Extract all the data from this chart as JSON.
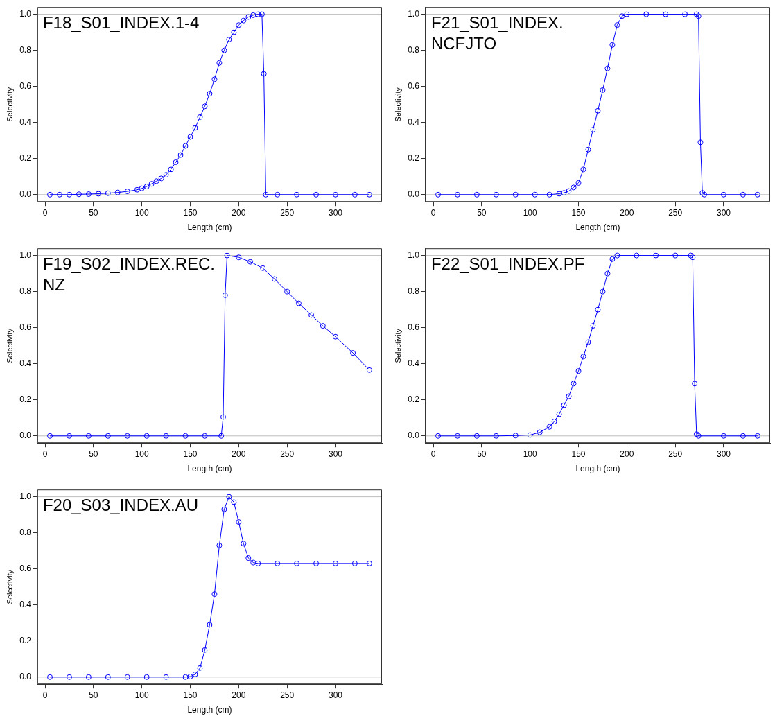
{
  "chart_data": [
    {
      "type": "line",
      "title": "F18_S01_INDEX.1-4",
      "xlabel": "Length (cm)",
      "ylabel": "Selectivity",
      "color": "#0000ff",
      "marker": "circle",
      "line_style": "solid",
      "x": [
        5,
        15,
        25,
        35,
        45,
        55,
        65,
        75,
        85,
        95,
        100,
        105,
        110,
        115,
        120,
        125,
        130,
        135,
        140,
        145,
        150,
        155,
        160,
        165,
        170,
        175,
        180,
        185,
        190,
        195,
        200,
        205,
        210,
        215,
        220,
        224,
        226,
        228,
        240,
        260,
        280,
        300,
        320,
        335
      ],
      "values": [
        0,
        0,
        0,
        0.002,
        0.003,
        0.005,
        0.008,
        0.012,
        0.018,
        0.027,
        0.035,
        0.045,
        0.06,
        0.075,
        0.09,
        0.11,
        0.14,
        0.18,
        0.22,
        0.27,
        0.32,
        0.37,
        0.43,
        0.49,
        0.56,
        0.64,
        0.73,
        0.8,
        0.86,
        0.9,
        0.94,
        0.965,
        0.985,
        0.995,
        1,
        1,
        0.67,
        0,
        0,
        0,
        0,
        0,
        0,
        0
      ],
      "xlim": [
        -8,
        348
      ],
      "ylim": [
        -0.04,
        1.04
      ],
      "xticks": [
        0,
        50,
        100,
        150,
        200,
        250,
        300
      ],
      "yticks": [
        {
          "value": 0,
          "label": "0.0"
        },
        {
          "value": 0.2,
          "label": "0.2"
        },
        {
          "value": 0.4,
          "label": "0.4"
        },
        {
          "value": 0.6,
          "label": "0.6"
        },
        {
          "value": 0.8,
          "label": "0.8"
        },
        {
          "value": 1,
          "label": "1.0"
        }
      ],
      "ref_lines": [
        {
          "axis": "y",
          "value": 0,
          "color": "#bebebe"
        },
        {
          "axis": "y",
          "value": 1,
          "color": "#bebebe"
        }
      ]
    },
    {
      "type": "line",
      "title": "F21_S01_INDEX.NCFJTO",
      "xlabel": "Length (cm)",
      "ylabel": "Selectivity",
      "color": "#0000ff",
      "marker": "circle",
      "line_style": "solid",
      "x": [
        5,
        25,
        45,
        65,
        85,
        105,
        120,
        130,
        135,
        140,
        145,
        150,
        155,
        160,
        165,
        170,
        175,
        180,
        185,
        190,
        195,
        200,
        220,
        240,
        260,
        272,
        274,
        276,
        278,
        280,
        300,
        320,
        335
      ],
      "values": [
        0,
        0,
        0,
        0,
        0,
        0,
        0,
        0.005,
        0.01,
        0.02,
        0.04,
        0.065,
        0.14,
        0.25,
        0.36,
        0.465,
        0.58,
        0.7,
        0.83,
        0.94,
        0.99,
        1,
        1,
        1,
        1,
        1,
        0.99,
        0.29,
        0.01,
        0,
        0,
        0,
        0
      ],
      "xlim": [
        -8,
        348
      ],
      "ylim": [
        -0.04,
        1.04
      ],
      "xticks": [
        0,
        50,
        100,
        150,
        200,
        250,
        300
      ],
      "yticks": [
        {
          "value": 0,
          "label": "0.0"
        },
        {
          "value": 0.2,
          "label": "0.2"
        },
        {
          "value": 0.4,
          "label": "0.4"
        },
        {
          "value": 0.6,
          "label": "0.6"
        },
        {
          "value": 0.8,
          "label": "0.8"
        },
        {
          "value": 1,
          "label": "1.0"
        }
      ],
      "ref_lines": [
        {
          "axis": "y",
          "value": 0,
          "color": "#bebebe"
        },
        {
          "axis": "y",
          "value": 1,
          "color": "#bebebe"
        }
      ]
    },
    {
      "type": "line",
      "title": "F19_S02_INDEX.REC.NZ",
      "xlabel": "Length (cm)",
      "ylabel": "Selectivity",
      "color": "#0000ff",
      "marker": "circle",
      "line_style": "solid",
      "x": [
        5,
        25,
        45,
        65,
        85,
        105,
        125,
        145,
        165,
        182,
        184,
        186,
        188,
        200,
        212,
        225,
        237,
        250,
        262,
        275,
        287,
        300,
        318,
        335
      ],
      "values": [
        0,
        0,
        0,
        0,
        0,
        0,
        0,
        0,
        0,
        0,
        0.105,
        0.78,
        1,
        0.99,
        0.965,
        0.93,
        0.87,
        0.8,
        0.735,
        0.67,
        0.61,
        0.55,
        0.46,
        0.365
      ],
      "xlim": [
        -8,
        348
      ],
      "ylim": [
        -0.04,
        1.04
      ],
      "xticks": [
        0,
        50,
        100,
        150,
        200,
        250,
        300
      ],
      "yticks": [
        {
          "value": 0,
          "label": "0.0"
        },
        {
          "value": 0.2,
          "label": "0.2"
        },
        {
          "value": 0.4,
          "label": "0.4"
        },
        {
          "value": 0.6,
          "label": "0.6"
        },
        {
          "value": 0.8,
          "label": "0.8"
        },
        {
          "value": 1,
          "label": "1.0"
        }
      ],
      "ref_lines": [
        {
          "axis": "y",
          "value": 0,
          "color": "#bebebe"
        },
        {
          "axis": "y",
          "value": 1,
          "color": "#bebebe"
        }
      ]
    },
    {
      "type": "line",
      "title": "F22_S01_INDEX.PF",
      "xlabel": "Length (cm)",
      "ylabel": "Selectivity",
      "color": "#0000ff",
      "marker": "circle",
      "line_style": "solid",
      "x": [
        5,
        25,
        45,
        65,
        85,
        100,
        110,
        120,
        125,
        130,
        135,
        140,
        145,
        150,
        155,
        160,
        165,
        170,
        175,
        180,
        185,
        190,
        210,
        230,
        250,
        266,
        268,
        270,
        272,
        274,
        300,
        320,
        335
      ],
      "values": [
        0,
        0,
        0,
        0,
        0.002,
        0.005,
        0.02,
        0.05,
        0.08,
        0.12,
        0.17,
        0.22,
        0.29,
        0.36,
        0.44,
        0.52,
        0.61,
        0.7,
        0.8,
        0.9,
        0.98,
        1,
        1,
        1,
        1,
        1,
        0.99,
        0.29,
        0.01,
        0,
        0,
        0,
        0
      ],
      "xlim": [
        -8,
        348
      ],
      "ylim": [
        -0.04,
        1.04
      ],
      "xticks": [
        0,
        50,
        100,
        150,
        200,
        250,
        300
      ],
      "yticks": [
        {
          "value": 0,
          "label": "0.0"
        },
        {
          "value": 0.2,
          "label": "0.2"
        },
        {
          "value": 0.4,
          "label": "0.4"
        },
        {
          "value": 0.6,
          "label": "0.6"
        },
        {
          "value": 0.8,
          "label": "0.8"
        },
        {
          "value": 1,
          "label": "1.0"
        }
      ],
      "ref_lines": [
        {
          "axis": "y",
          "value": 0,
          "color": "#bebebe"
        },
        {
          "axis": "y",
          "value": 1,
          "color": "#bebebe"
        }
      ]
    },
    {
      "type": "line",
      "title": "F20_S03_INDEX.AU",
      "xlabel": "Length (cm)",
      "ylabel": "Selectivity",
      "color": "#0000ff",
      "marker": "circle",
      "line_style": "solid",
      "x": [
        5,
        25,
        45,
        65,
        85,
        105,
        125,
        145,
        150,
        155,
        160,
        165,
        170,
        175,
        180,
        185,
        190,
        195,
        200,
        205,
        210,
        215,
        220,
        240,
        260,
        280,
        300,
        320,
        335
      ],
      "values": [
        0,
        0,
        0,
        0,
        0,
        0,
        0,
        0,
        0.003,
        0.015,
        0.05,
        0.15,
        0.29,
        0.46,
        0.73,
        0.93,
        1,
        0.97,
        0.86,
        0.74,
        0.66,
        0.635,
        0.63,
        0.63,
        0.63,
        0.63,
        0.63,
        0.63,
        0.63
      ],
      "xlim": [
        -8,
        348
      ],
      "ylim": [
        -0.04,
        1.04
      ],
      "xticks": [
        0,
        50,
        100,
        150,
        200,
        250,
        300
      ],
      "yticks": [
        {
          "value": 0,
          "label": "0.0"
        },
        {
          "value": 0.2,
          "label": "0.2"
        },
        {
          "value": 0.4,
          "label": "0.4"
        },
        {
          "value": 0.6,
          "label": "0.6"
        },
        {
          "value": 0.8,
          "label": "0.8"
        },
        {
          "value": 1,
          "label": "1.0"
        }
      ],
      "ref_lines": [
        {
          "axis": "y",
          "value": 0,
          "color": "#bebebe"
        },
        {
          "axis": "y",
          "value": 1,
          "color": "#bebebe"
        }
      ]
    }
  ]
}
